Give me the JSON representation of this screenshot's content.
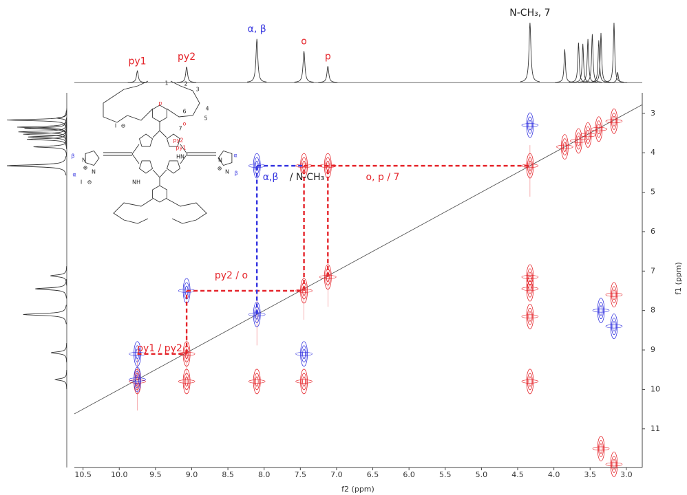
{
  "chart_data": {
    "type": "nmr2d",
    "x_label": "f2 (ppm)",
    "y_label": "f1 (ppm)",
    "xlim": [
      10.62,
      2.78
    ],
    "ylim": [
      2.48,
      11.98
    ],
    "xticks": [
      10.5,
      {
        "value": 10,
        "label": "10.0"
      },
      9.5,
      {
        "value": 9,
        "label": "9.0"
      },
      8.5,
      {
        "value": 8,
        "label": "8.0"
      },
      7.5,
      {
        "value": 7,
        "label": "7.0"
      },
      6.5,
      {
        "value": 6,
        "label": "6.0"
      },
      5.5,
      {
        "value": 5,
        "label": "5.0"
      },
      4.5,
      {
        "value": 4,
        "label": "4.0"
      },
      3.5,
      {
        "value": 3,
        "label": "3.0"
      }
    ],
    "yticks": [
      3,
      4,
      5,
      6,
      7,
      8,
      9,
      10,
      11
    ],
    "positive_color": "#e5242a",
    "negative_color": "#3535e0",
    "projection_peaks": [
      {
        "ppm": 9.75,
        "height": 19,
        "label": "py1",
        "label_color": "#e5242a"
      },
      {
        "ppm": 9.07,
        "height": 26,
        "label": "py2",
        "label_color": "#e5242a"
      },
      {
        "ppm": 8.1,
        "height": 72,
        "label": "α, β",
        "label_color": "#3535e0"
      },
      {
        "ppm": 7.45,
        "height": 52,
        "label": "o",
        "label_color": "#e5242a"
      },
      {
        "ppm": 7.12,
        "height": 27,
        "label": "p",
        "label_color": "#e5242a"
      },
      {
        "ppm": 4.33,
        "height": 99,
        "label": "N-CH₃, 7",
        "label_color": "#222222"
      },
      {
        "ppm": 3.85,
        "height": 55
      },
      {
        "ppm": 3.66,
        "height": 66
      },
      {
        "ppm": 3.6,
        "height": 64
      },
      {
        "ppm": 3.53,
        "height": 72
      },
      {
        "ppm": 3.47,
        "height": 80
      },
      {
        "ppm": 3.38,
        "height": 70
      },
      {
        "ppm": 3.35,
        "height": 82
      },
      {
        "ppm": 3.17,
        "height": 99
      },
      {
        "ppm": 3.12,
        "height": 17
      }
    ],
    "cross_peaks": [
      {
        "f2": 9.75,
        "f1": 9.8,
        "sign": "positive"
      },
      {
        "f2": 9.07,
        "f1": 9.1,
        "sign": "positive"
      },
      {
        "f2": 8.1,
        "f1": 8.1,
        "sign": "negative"
      },
      {
        "f2": 7.45,
        "f1": 7.5,
        "sign": "positive"
      },
      {
        "f2": 7.12,
        "f1": 7.15,
        "sign": "positive"
      },
      {
        "f2": 4.33,
        "f1": 4.33,
        "sign": "positive"
      },
      {
        "f2": 3.85,
        "f1": 3.85,
        "sign": "positive"
      },
      {
        "f2": 3.66,
        "f1": 3.7,
        "sign": "positive"
      },
      {
        "f2": 3.53,
        "f1": 3.55,
        "sign": "positive"
      },
      {
        "f2": 3.38,
        "f1": 3.4,
        "sign": "positive"
      },
      {
        "f2": 3.17,
        "f1": 3.2,
        "sign": "positive"
      },
      {
        "f2": 9.75,
        "f1": 9.1,
        "sign": "negative"
      },
      {
        "f2": 9.75,
        "f1": 9.75,
        "sign": "negative"
      },
      {
        "f2": 9.07,
        "f1": 9.8,
        "sign": "positive"
      },
      {
        "f2": 9.07,
        "f1": 7.5,
        "sign": "negative"
      },
      {
        "f2": 7.45,
        "f1": 9.1,
        "sign": "negative"
      },
      {
        "f2": 7.45,
        "f1": 9.8,
        "sign": "positive"
      },
      {
        "f2": 8.1,
        "f1": 9.8,
        "sign": "positive"
      },
      {
        "f2": 7.45,
        "f1": 4.33,
        "sign": "positive"
      },
      {
        "f2": 7.12,
        "f1": 4.33,
        "sign": "positive"
      },
      {
        "f2": 8.1,
        "f1": 4.33,
        "sign": "negative"
      },
      {
        "f2": 4.33,
        "f1": 7.15,
        "sign": "positive"
      },
      {
        "f2": 4.33,
        "f1": 7.45,
        "sign": "positive"
      },
      {
        "f2": 4.33,
        "f1": 8.15,
        "sign": "positive"
      },
      {
        "f2": 4.33,
        "f1": 9.8,
        "sign": "positive"
      },
      {
        "f2": 3.35,
        "f1": 8.0,
        "sign": "negative"
      },
      {
        "f2": 3.17,
        "f1": 8.4,
        "sign": "negative"
      },
      {
        "f2": 3.35,
        "f1": 11.5,
        "sign": "positive"
      },
      {
        "f2": 3.17,
        "f1": 11.9,
        "sign": "positive"
      },
      {
        "f2": 4.33,
        "f1": 3.3,
        "sign": "negative"
      },
      {
        "f2": 3.17,
        "f1": 7.6,
        "sign": "positive"
      }
    ],
    "connections": [
      {
        "x1": 9.75,
        "y1": 9.1,
        "x2": 9.07,
        "y2": 9.1,
        "sign": "positive"
      },
      {
        "x1": 9.07,
        "y1": 9.1,
        "x2": 9.07,
        "y2": 7.5,
        "sign": "positive"
      },
      {
        "x1": 9.07,
        "y1": 7.5,
        "x2": 7.45,
        "y2": 7.5,
        "sign": "positive"
      },
      {
        "x1": 7.45,
        "y1": 7.5,
        "x2": 7.45,
        "y2": 4.33,
        "sign": "positive"
      },
      {
        "x1": 7.12,
        "y1": 7.15,
        "x2": 7.12,
        "y2": 4.33,
        "sign": "positive"
      },
      {
        "x1": 8.1,
        "y1": 8.1,
        "x2": 8.1,
        "y2": 4.33,
        "sign": "negative"
      },
      {
        "x1": 8.1,
        "y1": 4.33,
        "x2": 7.45,
        "y2": 4.33,
        "sign": "negative"
      },
      {
        "x1": 7.45,
        "y1": 4.33,
        "x2": 4.33,
        "y2": 4.33,
        "sign": "positive"
      }
    ],
    "annotations": [
      {
        "text": "py1 / py2",
        "color": "#e5242a"
      },
      {
        "text": "py2 / o",
        "color": "#e5242a"
      },
      {
        "text": "α,β",
        "color": "#3535e0"
      },
      {
        "text": "/ N-CH₃",
        "color": "#222222"
      },
      {
        "text": "o, p / 7",
        "color": "#e5242a"
      }
    ],
    "structure_labels": [
      {
        "text": "1",
        "color": "#222222"
      },
      {
        "text": "2",
        "color": "#222222"
      },
      {
        "text": "3",
        "color": "#222222"
      },
      {
        "text": "4",
        "color": "#222222"
      },
      {
        "text": "5",
        "color": "#222222"
      },
      {
        "text": "6",
        "color": "#222222"
      },
      {
        "text": "7",
        "color": "#222222"
      },
      {
        "text": "p",
        "color": "#e5242a"
      },
      {
        "text": "o",
        "color": "#e5242a"
      },
      {
        "text": "py2",
        "color": "#e5242a"
      },
      {
        "text": "py1",
        "color": "#e5242a"
      },
      {
        "text": "HN",
        "color": "#222222"
      },
      {
        "text": "NH",
        "color": "#222222"
      },
      {
        "text": "β",
        "color": "#3535e0"
      },
      {
        "text": "α",
        "color": "#3535e0"
      },
      {
        "text": "α",
        "color": "#3535e0"
      },
      {
        "text": "β",
        "color": "#3535e0"
      },
      {
        "text": "N",
        "color": "#222222"
      },
      {
        "text": "N",
        "color": "#222222"
      },
      {
        "text": "N",
        "color": "#222222"
      },
      {
        "text": "N",
        "color": "#222222"
      },
      {
        "text": "I",
        "color": "#222222"
      },
      {
        "text": "I",
        "color": "#222222"
      },
      {
        "text": "⊖",
        "color": "#222222"
      },
      {
        "text": "⊖",
        "color": "#222222"
      },
      {
        "text": "⊕",
        "color": "#222222"
      },
      {
        "text": "⊕",
        "color": "#222222"
      }
    ]
  }
}
